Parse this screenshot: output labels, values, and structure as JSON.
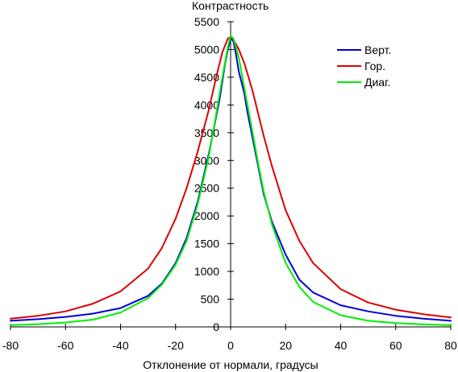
{
  "chart_data": {
    "type": "line",
    "xlabel": "Отклонение от нормали, градусы",
    "ylabel": "Контрастность",
    "xlim": [
      -80,
      80
    ],
    "ylim": [
      0,
      5500
    ],
    "x_ticks": [
      -80,
      -60,
      -40,
      -20,
      0,
      20,
      40,
      60,
      80
    ],
    "y_ticks": [
      0,
      500,
      1000,
      1500,
      2000,
      2500,
      3000,
      3500,
      4000,
      4500,
      5000,
      5500
    ],
    "grid": false,
    "legend_position": "top-right",
    "series": [
      {
        "name": "Верт.",
        "color": "#0000dd",
        "points": [
          [
            -80,
            110
          ],
          [
            -70,
            140
          ],
          [
            -60,
            180
          ],
          [
            -50,
            240
          ],
          [
            -40,
            340
          ],
          [
            -30,
            560
          ],
          [
            -25,
            780
          ],
          [
            -20,
            1150
          ],
          [
            -16,
            1600
          ],
          [
            -12,
            2250
          ],
          [
            -8,
            3100
          ],
          [
            -4,
            4100
          ],
          [
            -2,
            4750
          ],
          [
            -1,
            5000
          ],
          [
            0,
            5200
          ],
          [
            1,
            5150
          ],
          [
            2,
            4900
          ],
          [
            3,
            4600
          ],
          [
            4,
            4400
          ],
          [
            5,
            4200
          ],
          [
            6,
            3900
          ],
          [
            8,
            3400
          ],
          [
            10,
            2900
          ],
          [
            12,
            2400
          ],
          [
            15,
            1900
          ],
          [
            20,
            1300
          ],
          [
            25,
            850
          ],
          [
            30,
            620
          ],
          [
            40,
            390
          ],
          [
            50,
            280
          ],
          [
            60,
            200
          ],
          [
            70,
            150
          ],
          [
            80,
            110
          ]
        ]
      },
      {
        "name": "Гор.",
        "color": "#dd0000",
        "points": [
          [
            -80,
            150
          ],
          [
            -70,
            200
          ],
          [
            -60,
            280
          ],
          [
            -50,
            420
          ],
          [
            -40,
            640
          ],
          [
            -30,
            1050
          ],
          [
            -25,
            1420
          ],
          [
            -20,
            1950
          ],
          [
            -16,
            2500
          ],
          [
            -12,
            3150
          ],
          [
            -8,
            3900
          ],
          [
            -5,
            4550
          ],
          [
            -3,
            4950
          ],
          [
            -1,
            5200
          ],
          [
            0,
            5220
          ],
          [
            1,
            5180
          ],
          [
            3,
            5000
          ],
          [
            5,
            4750
          ],
          [
            8,
            4250
          ],
          [
            10,
            3850
          ],
          [
            12,
            3450
          ],
          [
            15,
            2900
          ],
          [
            20,
            2100
          ],
          [
            25,
            1550
          ],
          [
            30,
            1150
          ],
          [
            40,
            680
          ],
          [
            50,
            440
          ],
          [
            60,
            310
          ],
          [
            70,
            230
          ],
          [
            80,
            170
          ]
        ]
      },
      {
        "name": "Диаг.",
        "color": "#00ee00",
        "points": [
          [
            -80,
            30
          ],
          [
            -70,
            50
          ],
          [
            -60,
            80
          ],
          [
            -50,
            130
          ],
          [
            -40,
            260
          ],
          [
            -30,
            520
          ],
          [
            -25,
            760
          ],
          [
            -20,
            1120
          ],
          [
            -16,
            1550
          ],
          [
            -12,
            2200
          ],
          [
            -8,
            3050
          ],
          [
            -5,
            3900
          ],
          [
            -3,
            4500
          ],
          [
            -1,
            5050
          ],
          [
            0,
            5250
          ],
          [
            1,
            5200
          ],
          [
            3,
            4850
          ],
          [
            5,
            4300
          ],
          [
            8,
            3500
          ],
          [
            10,
            2950
          ],
          [
            12,
            2450
          ],
          [
            15,
            1850
          ],
          [
            20,
            1150
          ],
          [
            25,
            720
          ],
          [
            30,
            450
          ],
          [
            40,
            210
          ],
          [
            50,
            110
          ],
          [
            60,
            70
          ],
          [
            70,
            45
          ],
          [
            80,
            30
          ]
        ]
      }
    ]
  }
}
